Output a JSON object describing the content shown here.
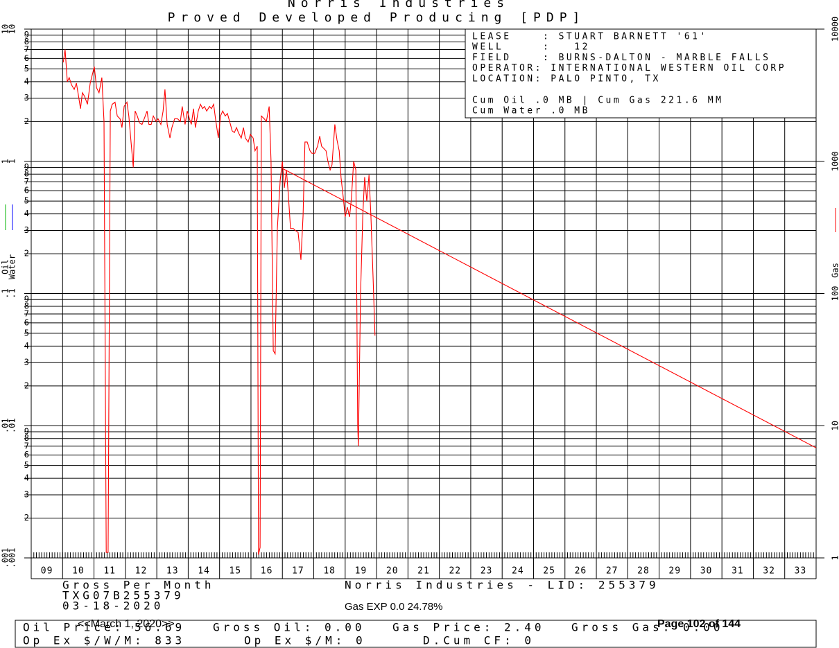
{
  "chart_data": {
    "type": "line",
    "title": "Norris Industries",
    "subtitle": "Proved Developed Producing [PDP]",
    "log_scale": true,
    "grid": true,
    "xlim": [
      9,
      34
    ],
    "years": [
      "09",
      "10",
      "11",
      "12",
      "13",
      "14",
      "15",
      "16",
      "17",
      "18",
      "19",
      "20",
      "21",
      "22",
      "23",
      "24",
      "25",
      "26",
      "27",
      "28",
      "29",
      "30",
      "31",
      "32",
      "33"
    ],
    "ylim": [
      1,
      10000
    ],
    "yticks": [
      1,
      10,
      100,
      1000,
      10000
    ],
    "y2lim": [
      0.001,
      10
    ],
    "y2ticks": [
      {
        "value": 0.001,
        "label": ".001"
      },
      {
        "value": 0.01,
        "label": ".01"
      },
      {
        "value": 0.1,
        "label": ".1"
      },
      1,
      10
    ],
    "minor_ticks": [
      2,
      3,
      4,
      5,
      6,
      7,
      8,
      9
    ],
    "y2_series": [
      {
        "name": "Oil",
        "color": "#00b400"
      },
      {
        "name": "Water",
        "color": "#0000ff"
      }
    ],
    "series": [
      {
        "name": "Gas",
        "color": "#ff0000",
        "axis": "y",
        "x": [
          10.02,
          10.08,
          10.15,
          10.21,
          10.28,
          10.37,
          10.44,
          10.5,
          10.57,
          10.63,
          10.7,
          10.79,
          10.88,
          11.01,
          11.08,
          11.16,
          11.25,
          11.32,
          11.39,
          11.45,
          11.52,
          11.58,
          11.67,
          11.74,
          11.83,
          11.89,
          11.96,
          12.05,
          12.11,
          12.18,
          12.25,
          12.31,
          12.38,
          12.45,
          12.53,
          12.6,
          12.69,
          12.75,
          12.82,
          12.89,
          12.98,
          13.04,
          13.13,
          13.2,
          13.26,
          13.33,
          13.42,
          13.48,
          13.57,
          13.66,
          13.75,
          13.81,
          13.9,
          13.97,
          14.04,
          14.1,
          14.17,
          14.23,
          14.32,
          14.39,
          14.46,
          14.52,
          14.59,
          14.68,
          14.74,
          14.81,
          14.87,
          14.96,
          15.03,
          15.1,
          15.18,
          15.25,
          15.32,
          15.4,
          15.47,
          15.54,
          15.6,
          15.69,
          15.76,
          15.82,
          15.91,
          15.98,
          16.07,
          16.13,
          16.2,
          16.24,
          16.29,
          16.33,
          16.42,
          16.49,
          16.58,
          16.64,
          16.71,
          16.77,
          16.84,
          16.93,
          17.0,
          17.06,
          17.13,
          17.19,
          17.26,
          17.35,
          17.41,
          17.5,
          17.59,
          17.66,
          17.72,
          17.79,
          17.88,
          17.94,
          18.03,
          18.12,
          18.19,
          18.25,
          18.32,
          18.39,
          18.45,
          18.52,
          18.58,
          18.67,
          18.74,
          18.81,
          18.87,
          18.94,
          19.0,
          19.07,
          19.14,
          19.2,
          19.27,
          19.34,
          19.4,
          19.42,
          19.49,
          19.56,
          19.62,
          19.69,
          19.76,
          19.82,
          19.89,
          19.95
        ],
        "values": [
          5600,
          7000,
          4000,
          4300,
          3800,
          3500,
          3900,
          3200,
          2500,
          3300,
          3100,
          2700,
          3900,
          5200,
          3600,
          3300,
          4300,
          2000,
          1.1,
          1.1,
          2400,
          2700,
          2800,
          2200,
          2100,
          1800,
          2600,
          2800,
          2200,
          1400,
          900,
          2400,
          2200,
          1950,
          1900,
          2100,
          2400,
          1900,
          1900,
          2200,
          2000,
          2100,
          1900,
          2400,
          3500,
          1900,
          1500,
          1800,
          2100,
          2100,
          2000,
          2600,
          1900,
          2400,
          2100,
          1900,
          2500,
          1800,
          2400,
          2700,
          2500,
          2600,
          2400,
          2600,
          2500,
          2700,
          2100,
          1500,
          2200,
          2400,
          2200,
          2300,
          2000,
          1700,
          1650,
          1800,
          1650,
          1500,
          1800,
          1500,
          1400,
          1600,
          1500,
          1200,
          1300,
          1.06,
          1.2,
          2200,
          2100,
          2000,
          2600,
          1000,
          37,
          35,
          310,
          720,
          1000,
          630,
          860,
          560,
          310,
          310,
          300,
          290,
          180,
          390,
          1400,
          1400,
          1200,
          1150,
          1150,
          1300,
          1550,
          1300,
          1250,
          1200,
          1000,
          860,
          940,
          1900,
          1450,
          1200,
          750,
          530,
          380,
          450,
          380,
          530,
          1000,
          860,
          10,
          7,
          100,
          390,
          760,
          500,
          790,
          390,
          130,
          48
        ]
      }
    ],
    "forecast": {
      "color": "#ff0000",
      "x": [
        17.0,
        34
      ],
      "values": [
        884,
        6.8
      ]
    },
    "info_box": [
      "LEASE    : STUART BARNETT '61'",
      "WELL     :   12",
      "FIELD    : BURNS-DALTON - MARBLE FALLS",
      "OPERATOR: INTERNATIONAL WESTERN OIL CORP",
      "LOCATION: PALO PINTO, TX"
    ],
    "cum_lines": [
      "Cum Oil .0 MB | Cum Gas 221.6 MM",
      "Cum Water .0 MB"
    ]
  },
  "footer": {
    "left": [
      "Gross Per Month",
      "TXG07B255379",
      "03-18-2020"
    ],
    "center": "Norris Industries - LID: 255379",
    "gas_exp": "Gas EXP 0.0 24.78%",
    "row1": [
      "Oil Price: 56.69",
      "Gross Oil: 0.00",
      "Gas Price: 2.40",
      "Gross Gas: 0.00"
    ],
    "row2": [
      "Op Ex $/W/M: 833",
      "Op Ex $/M: 0",
      "D.Cum CF: 0"
    ],
    "date_nav": "<<March 1, 2020>>",
    "page": "Page 102 of 144"
  }
}
